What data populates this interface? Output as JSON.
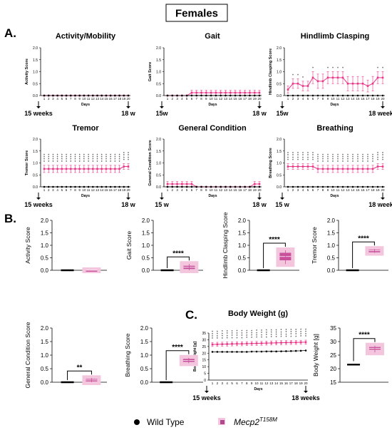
{
  "figure_title": "Females",
  "panel_labels": {
    "a": "A.",
    "b": "B.",
    "c": "C."
  },
  "legend": {
    "wild_type": "Wild Type",
    "mutant_base": "Mecp2",
    "mutant_sup": "T158M"
  },
  "colors": {
    "mutant": "#e8388a",
    "wild_type": "#000000",
    "mutant_box": "#c9519b",
    "mutant_fill": "#f3c6de",
    "marker_legend": "#b04a90"
  },
  "chart_data": [
    {
      "type": "line",
      "title": "Activity/Mobility",
      "ylabel": "Activity Score",
      "xlabel": "Days",
      "ylim": [
        0,
        2
      ],
      "yticks": [
        "0.0",
        "0.5",
        "1.0",
        "1.5",
        "2.0"
      ],
      "x": [
        1,
        2,
        3,
        4,
        5,
        6,
        7,
        8,
        9,
        10,
        11,
        12,
        13,
        14,
        15,
        16,
        17,
        18,
        19,
        20
      ],
      "timeline": [
        "15 weeks",
        "18 w"
      ],
      "series": [
        {
          "name": "Wild Type",
          "values": [
            0,
            0,
            0,
            0,
            0,
            0,
            0,
            0,
            0,
            0,
            0,
            0,
            0,
            0,
            0,
            0,
            0,
            0,
            0,
            0
          ]
        },
        {
          "name": "Mecp2 T158M",
          "values": [
            0,
            0,
            0,
            0,
            0,
            0,
            0,
            0,
            0,
            0,
            0,
            0,
            0,
            0,
            0,
            0,
            0,
            0,
            0,
            0
          ],
          "err": [
            0,
            0,
            0,
            0,
            0,
            0,
            0,
            0,
            0,
            0,
            0,
            0,
            0,
            0,
            0,
            0,
            0,
            0,
            0,
            0
          ]
        }
      ],
      "stars": [
        0,
        0,
        0,
        0,
        0,
        0,
        0,
        0,
        0,
        0,
        0,
        0,
        0,
        0,
        0,
        0,
        0,
        0,
        0,
        0
      ]
    },
    {
      "type": "line",
      "title": "Gait",
      "ylabel": "Gait Score",
      "xlabel": "Days",
      "ylim": [
        0,
        2
      ],
      "yticks": [
        "0.0",
        "0.5",
        "1.0",
        "1.5",
        "2.0"
      ],
      "x": [
        1,
        2,
        3,
        4,
        5,
        6,
        7,
        8,
        9,
        10,
        11,
        12,
        13,
        14,
        15,
        16,
        17,
        18,
        19,
        20
      ],
      "timeline": [
        "15w",
        "18 w"
      ],
      "series": [
        {
          "name": "Wild Type",
          "values": [
            0,
            0,
            0,
            0,
            0,
            0,
            0,
            0,
            0,
            0,
            0,
            0,
            0,
            0,
            0,
            0,
            0,
            0,
            0,
            0
          ]
        },
        {
          "name": "Mecp2 T158M",
          "values": [
            0,
            0,
            0,
            0,
            0,
            0.12,
            0.12,
            0.12,
            0.12,
            0.12,
            0.12,
            0.12,
            0.12,
            0.12,
            0.12,
            0.12,
            0.12,
            0.12,
            0.12,
            0.12
          ],
          "err": [
            0,
            0,
            0,
            0,
            0,
            0.1,
            0.1,
            0.1,
            0.1,
            0.1,
            0.1,
            0.1,
            0.1,
            0.1,
            0.1,
            0.1,
            0.1,
            0.1,
            0.1,
            0.1
          ]
        }
      ],
      "stars": [
        0,
        0,
        0,
        0,
        0,
        0,
        0,
        0,
        0,
        0,
        0,
        0,
        0,
        0,
        0,
        0,
        0,
        0,
        0,
        0
      ]
    },
    {
      "type": "line",
      "title": "Hindlimb Clasping",
      "ylabel": "Hindlimb Clasping Score",
      "xlabel": "Days",
      "ylim": [
        0,
        2
      ],
      "yticks": [
        "0.0",
        "0.5",
        "1.0",
        "1.5",
        "2.0"
      ],
      "x": [
        1,
        2,
        3,
        4,
        5,
        6,
        7,
        8,
        9,
        10,
        11,
        12,
        13,
        14,
        15,
        16,
        17,
        18,
        19,
        20
      ],
      "timeline": [
        "15w",
        "18 weeks"
      ],
      "series": [
        {
          "name": "Wild Type",
          "values": [
            0,
            0,
            0,
            0,
            0,
            0,
            0,
            0,
            0,
            0,
            0,
            0,
            0,
            0,
            0,
            0,
            0,
            0,
            0,
            0
          ]
        },
        {
          "name": "Mecp2 T158M",
          "values": [
            0.25,
            0.5,
            0.5,
            0.4,
            0.4,
            0.75,
            0.6,
            0.6,
            0.75,
            0.75,
            0.75,
            0.75,
            0.5,
            0.5,
            0.5,
            0.5,
            0.4,
            0.5,
            0.75,
            0.75
          ],
          "err": [
            0.15,
            0.2,
            0.2,
            0.2,
            0.2,
            0.25,
            0.3,
            0.3,
            0.25,
            0.25,
            0.25,
            0.25,
            0.3,
            0.3,
            0.3,
            0.3,
            0.25,
            0.3,
            0.25,
            0.25
          ]
        }
      ],
      "stars": [
        0,
        1,
        1,
        1,
        0,
        1,
        0,
        0,
        1,
        1,
        1,
        1,
        0,
        0,
        0,
        0,
        0,
        0,
        1,
        1
      ]
    },
    {
      "type": "line",
      "title": "Tremor",
      "ylabel": "Tremor Score",
      "xlabel": "Days",
      "ylim": [
        0,
        2
      ],
      "yticks": [
        "0.0",
        "0.5",
        "1.0",
        "1.5",
        "2.0"
      ],
      "x": [
        1,
        2,
        3,
        4,
        5,
        6,
        7,
        8,
        9,
        10,
        11,
        12,
        13,
        14,
        15,
        16,
        17,
        18,
        19,
        20
      ],
      "timeline": [
        "15 weeks",
        "18 w"
      ],
      "series": [
        {
          "name": "Wild Type",
          "values": [
            0,
            0,
            0,
            0,
            0,
            0,
            0,
            0,
            0,
            0,
            0,
            0,
            0,
            0,
            0,
            0,
            0,
            0,
            0,
            0
          ]
        },
        {
          "name": "Mecp2 T158M",
          "values": [
            0.75,
            0.75,
            0.75,
            0.75,
            0.75,
            0.75,
            0.75,
            0.75,
            0.75,
            0.75,
            0.75,
            0.75,
            0.75,
            0.75,
            0.75,
            0.75,
            0.75,
            0.75,
            0.85,
            0.85
          ],
          "err": [
            0.15,
            0.15,
            0.15,
            0.15,
            0.15,
            0.15,
            0.15,
            0.15,
            0.15,
            0.15,
            0.15,
            0.15,
            0.15,
            0.15,
            0.15,
            0.15,
            0.15,
            0.15,
            0.12,
            0.12
          ]
        }
      ],
      "stars": [
        4,
        4,
        4,
        4,
        4,
        4,
        4,
        4,
        4,
        4,
        4,
        4,
        4,
        4,
        4,
        4,
        4,
        4,
        4,
        4
      ]
    },
    {
      "type": "line",
      "title": "General Condition",
      "ylabel": "General Condition Score",
      "xlabel": "Days",
      "ylim": [
        0,
        2
      ],
      "yticks": [
        "0.0",
        "0.5",
        "1.0",
        "1.5",
        "2.0"
      ],
      "x": [
        1,
        2,
        3,
        4,
        5,
        6,
        7,
        8,
        9,
        10,
        11,
        12,
        13,
        14,
        15,
        16,
        17,
        18,
        19,
        20
      ],
      "timeline": [
        "15 w",
        "18 w"
      ],
      "series": [
        {
          "name": "Wild Type",
          "values": [
            0,
            0,
            0,
            0,
            0,
            0,
            0,
            0,
            0,
            0,
            0,
            0,
            0,
            0,
            0,
            0,
            0,
            0,
            0,
            0
          ]
        },
        {
          "name": "Mecp2 T158M",
          "values": [
            0.12,
            0.12,
            0.12,
            0.12,
            0.12,
            0.12,
            0,
            0,
            0,
            0,
            0,
            0,
            0,
            0,
            0,
            0,
            0,
            0,
            0.12,
            0.12
          ],
          "err": [
            0.1,
            0.1,
            0.1,
            0.1,
            0.1,
            0.1,
            0,
            0,
            0,
            0,
            0,
            0,
            0,
            0,
            0,
            0,
            0,
            0,
            0.1,
            0.1
          ]
        }
      ],
      "stars": [
        0,
        0,
        0,
        0,
        0,
        0,
        0,
        0,
        0,
        0,
        0,
        0,
        0,
        0,
        0,
        0,
        0,
        0,
        0,
        0
      ]
    },
    {
      "type": "line",
      "title": "Breathing",
      "ylabel": "Breathing Score",
      "xlabel": "Days",
      "ylim": [
        0,
        2
      ],
      "yticks": [
        "0.0",
        "0.5",
        "1.0",
        "1.5",
        "2.0"
      ],
      "x": [
        1,
        2,
        3,
        4,
        5,
        6,
        7,
        8,
        9,
        10,
        11,
        12,
        13,
        14,
        15,
        16,
        17,
        18,
        19,
        20
      ],
      "timeline": [
        "15 w",
        "18 weeks"
      ],
      "series": [
        {
          "name": "Wild Type",
          "values": [
            0,
            0,
            0,
            0,
            0,
            0,
            0,
            0,
            0,
            0,
            0,
            0,
            0,
            0,
            0,
            0,
            0,
            0,
            0,
            0
          ]
        },
        {
          "name": "Mecp2 T158M",
          "values": [
            0.85,
            0.85,
            0.85,
            0.85,
            0.85,
            0.85,
            0.75,
            0.75,
            0.75,
            0.75,
            0.75,
            0.75,
            0.75,
            0.75,
            0.75,
            0.75,
            0.75,
            0.75,
            0.85,
            0.85
          ],
          "err": [
            0.12,
            0.12,
            0.12,
            0.12,
            0.12,
            0.12,
            0.15,
            0.15,
            0.15,
            0.15,
            0.15,
            0.15,
            0.15,
            0.15,
            0.15,
            0.15,
            0.15,
            0.15,
            0.12,
            0.12
          ]
        }
      ],
      "stars": [
        4,
        4,
        4,
        4,
        4,
        4,
        4,
        4,
        4,
        4,
        4,
        4,
        4,
        4,
        4,
        4,
        4,
        4,
        4,
        4
      ]
    },
    {
      "type": "box",
      "ylabel": "Activity Score",
      "ylim": [
        0,
        2
      ],
      "yticks": [
        "0.0",
        "0.5",
        "1.0",
        "1.5",
        "2.0"
      ],
      "groups": [
        {
          "name": "Wild Type",
          "median": 0,
          "q1": 0,
          "q3": 0,
          "min": 0,
          "max": 0
        },
        {
          "name": "Mecp2 T158M",
          "median": 0,
          "q1": 0,
          "q3": 0,
          "min": 0,
          "max": 0
        }
      ],
      "sig": ""
    },
    {
      "type": "box",
      "ylabel": "Gait Score",
      "ylim": [
        0,
        2
      ],
      "yticks": [
        "0.0",
        "0.5",
        "1.0",
        "1.5",
        "2.0"
      ],
      "groups": [
        {
          "name": "Wild Type",
          "median": 0,
          "q1": 0,
          "q3": 0,
          "min": 0,
          "max": 0
        },
        {
          "name": "Mecp2 T158M",
          "median": 0.12,
          "q1": 0.05,
          "q3": 0.18,
          "min": 0,
          "max": 0.25
        }
      ],
      "sig": "****"
    },
    {
      "type": "box",
      "ylabel": "Hindlimb Clasping Score",
      "ylim": [
        0,
        2
      ],
      "yticks": [
        "0.0",
        "0.5",
        "1.0",
        "1.5",
        "2.0"
      ],
      "groups": [
        {
          "name": "Wild Type",
          "median": 0,
          "q1": 0,
          "q3": 0,
          "min": 0,
          "max": 0
        },
        {
          "name": "Mecp2 T158M",
          "median": 0.55,
          "q1": 0.4,
          "q3": 0.7,
          "min": 0.25,
          "max": 0.8
        }
      ],
      "sig": "****"
    },
    {
      "type": "box",
      "ylabel": "Tremor Score",
      "ylim": [
        0,
        2
      ],
      "yticks": [
        "0.0",
        "0.5",
        "1.0",
        "1.5",
        "2.0"
      ],
      "groups": [
        {
          "name": "Wild Type",
          "median": 0,
          "q1": 0,
          "q3": 0,
          "min": 0,
          "max": 0
        },
        {
          "name": "Mecp2 T158M",
          "median": 0.78,
          "q1": 0.72,
          "q3": 0.82,
          "min": 0.7,
          "max": 0.85
        }
      ],
      "sig": "****"
    },
    {
      "type": "box",
      "ylabel": "General Condition Score",
      "ylim": [
        0,
        2
      ],
      "yticks": [
        "0.0",
        "0.5",
        "1.0",
        "1.5",
        "2.0"
      ],
      "groups": [
        {
          "name": "Wild Type",
          "median": 0,
          "q1": 0,
          "q3": 0,
          "min": 0,
          "max": 0
        },
        {
          "name": "Mecp2 T158M",
          "median": 0.08,
          "q1": 0.03,
          "q3": 0.12,
          "min": 0,
          "max": 0.15
        }
      ],
      "sig": "**"
    },
    {
      "type": "box",
      "ylabel": "Breathing Score",
      "ylim": [
        0,
        2
      ],
      "yticks": [
        "0.0",
        "0.5",
        "1.0",
        "1.5",
        "2.0"
      ],
      "groups": [
        {
          "name": "Wild Type",
          "median": 0,
          "q1": 0,
          "q3": 0,
          "min": 0,
          "max": 0
        },
        {
          "name": "Mecp2 T158M",
          "median": 0.8,
          "q1": 0.75,
          "q3": 0.86,
          "min": 0.7,
          "max": 0.9
        }
      ],
      "sig": "****"
    },
    {
      "type": "line",
      "title": "Body Weight (g)",
      "ylabel": "Body Weight [g]",
      "xlabel": "Days",
      "ylim": [
        0,
        35
      ],
      "yticks": [
        "0",
        "5",
        "10",
        "15",
        "20",
        "25",
        "30",
        "35"
      ],
      "x": [
        1,
        2,
        3,
        4,
        5,
        6,
        7,
        8,
        9,
        10,
        11,
        12,
        13,
        14,
        15,
        16,
        17,
        18,
        19,
        20
      ],
      "timeline": [
        "15 weeks",
        "18 weeks"
      ],
      "series": [
        {
          "name": "Wild Type",
          "values": [
            21,
            21,
            21,
            21,
            21,
            21,
            21,
            21,
            21.2,
            21.2,
            21.2,
            21.3,
            21.3,
            21.3,
            21.4,
            21.5,
            21.6,
            21.7,
            21.8,
            22
          ]
        },
        {
          "name": "Mecp2 T158M",
          "values": [
            26.5,
            26.6,
            26.7,
            26.8,
            26.9,
            27,
            27,
            27.1,
            27.2,
            27.3,
            27.4,
            27.5,
            27.6,
            27.7,
            27.8,
            27.9,
            28,
            28,
            28.1,
            28.2
          ],
          "err": [
            1.5,
            1.5,
            1.5,
            1.5,
            1.5,
            1.5,
            1.5,
            1.5,
            1.5,
            1.5,
            1.5,
            1.5,
            1.5,
            1.5,
            1.5,
            1.5,
            1.5,
            1.5,
            1.5,
            1.5
          ]
        }
      ],
      "stars": [
        4,
        4,
        4,
        4,
        4,
        4,
        4,
        4,
        4,
        4,
        4,
        4,
        4,
        4,
        4,
        4,
        4,
        4,
        4,
        4
      ]
    },
    {
      "type": "box",
      "ylabel": "Body Weight [g]",
      "ylim": [
        15,
        35
      ],
      "yticks": [
        "15",
        "20",
        "25",
        "30",
        "35"
      ],
      "groups": [
        {
          "name": "Wild Type",
          "median": 21.5,
          "q1": 21.2,
          "q3": 21.8,
          "min": 21,
          "max": 22
        },
        {
          "name": "Mecp2 T158M",
          "median": 27.5,
          "q1": 27,
          "q3": 28,
          "min": 26,
          "max": 28.5
        }
      ],
      "sig": "****"
    }
  ]
}
